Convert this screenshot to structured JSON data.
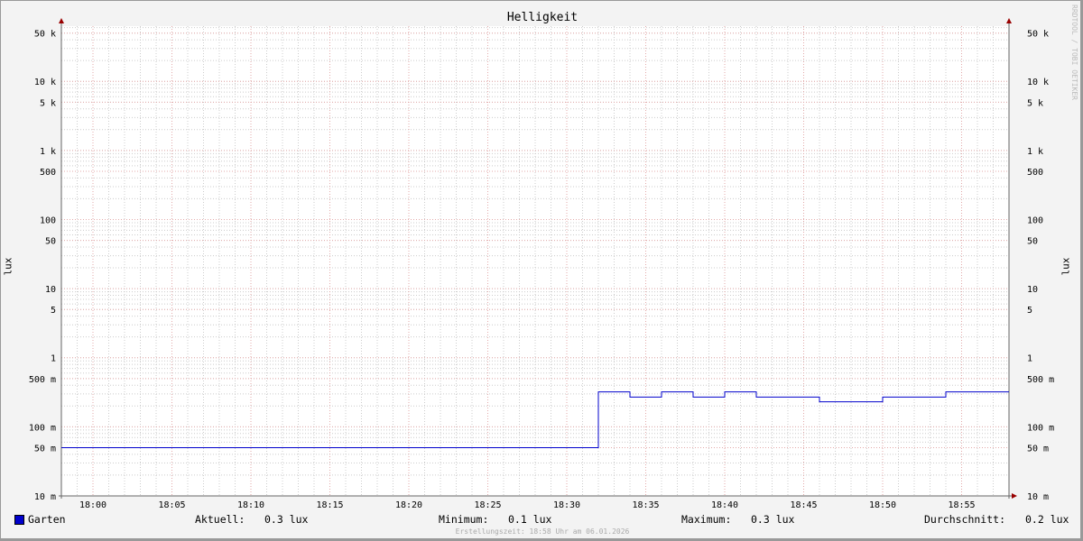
{
  "chart_data": {
    "type": "line",
    "title": "Helligkeit",
    "ylabel": "lux",
    "ylabel_right": "lux",
    "yscale": "log",
    "ylim": [
      0.01,
      63000
    ],
    "xlim": [
      "17:58",
      "18:58"
    ],
    "grid": true,
    "y_ticks": [
      "10 m",
      "50 m",
      "100 m",
      "500 m",
      "1",
      "5",
      "10",
      "50",
      "100",
      "500",
      "1 k",
      "5 k",
      "10 k",
      "50 k"
    ],
    "y_tick_values": [
      0.01,
      0.05,
      0.1,
      0.5,
      1,
      5,
      10,
      50,
      100,
      500,
      1000,
      5000,
      10000,
      50000
    ],
    "x_ticks": [
      "18:00",
      "18:05",
      "18:10",
      "18:15",
      "18:20",
      "18:25",
      "18:30",
      "18:35",
      "18:40",
      "18:45",
      "18:50",
      "18:55"
    ],
    "series": [
      {
        "name": "Garten",
        "color": "#0000cc",
        "step": true,
        "points": [
          [
            "17:58",
            0.05
          ],
          [
            "18:32",
            0.32
          ],
          [
            "18:34",
            0.27
          ],
          [
            "18:36",
            0.32
          ],
          [
            "18:38",
            0.27
          ],
          [
            "18:40",
            0.32
          ],
          [
            "18:42",
            0.27
          ],
          [
            "18:46",
            0.23
          ],
          [
            "18:50",
            0.27
          ],
          [
            "18:54",
            0.32
          ],
          [
            "18:58",
            0.32
          ]
        ]
      }
    ],
    "legend": {
      "position": "bottom",
      "label": "Garten",
      "stats": [
        {
          "label": "Aktuell:",
          "value": "0.3 lux"
        },
        {
          "label": "Minimum:",
          "value": "0.1 lux"
        },
        {
          "label": "Maximum:",
          "value": "0.3 lux"
        },
        {
          "label": "Durchschnitt:",
          "value": "0.2 lux"
        }
      ]
    }
  },
  "watermark": "RRDTOOL / TOBI OETIKER",
  "footer": "Erstellungszeit: 18:58 Uhr am 06.01.2026"
}
